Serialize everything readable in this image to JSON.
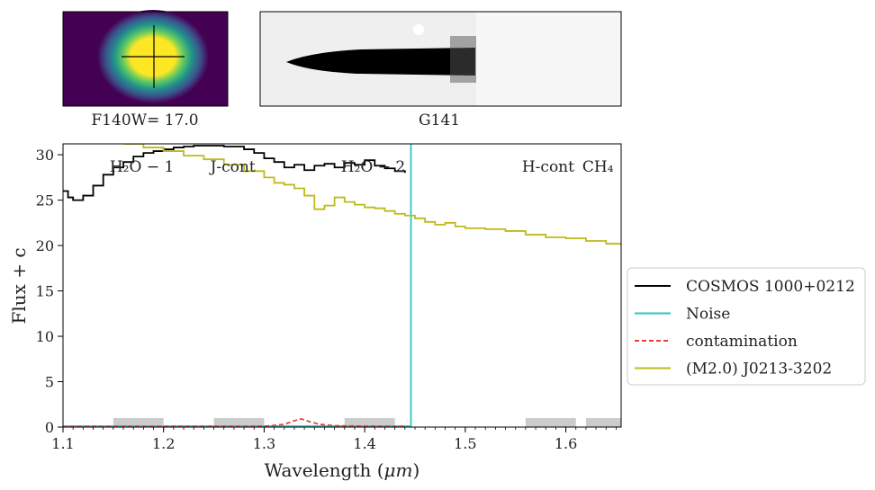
{
  "thumbnails": {
    "direct_caption": "F140W= 17.0",
    "grism_caption": "G141"
  },
  "chart_data": {
    "type": "line",
    "xlabel": "Wavelength ($\\mu m$)",
    "ylabel": "Flux + c",
    "xlim": [
      1.1,
      1.655
    ],
    "ylim": [
      0,
      31.2
    ],
    "xticks": [
      1.1,
      1.2,
      1.3,
      1.4,
      1.5,
      1.6
    ],
    "yticks": [
      0,
      5,
      10,
      15,
      20,
      25,
      30
    ],
    "legend_position": "outside-right",
    "band_labels": [
      {
        "text": "H₂O − 1",
        "x": 1.15
      },
      {
        "text": "J-cont",
        "x": 1.25
      },
      {
        "text": "H₂O − 2",
        "x": 1.38
      },
      {
        "text": "H-cont",
        "x": 1.56
      },
      {
        "text": "CH₄",
        "x": 1.62
      }
    ],
    "shaded_regions": [
      [
        1.15,
        1.2
      ],
      [
        1.25,
        1.3
      ],
      [
        1.38,
        1.43
      ],
      [
        1.56,
        1.61
      ],
      [
        1.62,
        1.655
      ]
    ],
    "series": [
      {
        "name": "COSMOS 1000+0212",
        "color": "#000000",
        "style": "step",
        "x": [
          1.1,
          1.105,
          1.11,
          1.12,
          1.13,
          1.14,
          1.15,
          1.16,
          1.17,
          1.18,
          1.19,
          1.2,
          1.21,
          1.22,
          1.23,
          1.24,
          1.25,
          1.26,
          1.27,
          1.28,
          1.29,
          1.3,
          1.31,
          1.32,
          1.33,
          1.34,
          1.35,
          1.36,
          1.37,
          1.38,
          1.39,
          1.4,
          1.41,
          1.42,
          1.43,
          1.44
        ],
        "y": [
          26.0,
          25.3,
          25.0,
          25.5,
          26.6,
          27.8,
          28.6,
          29.2,
          29.8,
          30.2,
          30.4,
          30.6,
          30.8,
          30.9,
          31.0,
          31.0,
          31.0,
          30.9,
          30.9,
          30.6,
          30.2,
          29.6,
          29.2,
          28.6,
          28.9,
          28.3,
          28.8,
          29.0,
          28.6,
          29.1,
          28.9,
          29.4,
          28.8,
          28.5,
          28.2,
          28.0
        ]
      },
      {
        "name": "Noise",
        "color": "#2ec4c4",
        "style": "step",
        "x": [
          1.1,
          1.445,
          1.446
        ],
        "y": [
          0.1,
          0.1,
          31.2
        ]
      },
      {
        "name": "contamination",
        "color": "#e8413c",
        "style": "dashed",
        "x": [
          1.1,
          1.3,
          1.32,
          1.33,
          1.337,
          1.345,
          1.355,
          1.37,
          1.4,
          1.44
        ],
        "y": [
          0.05,
          0.08,
          0.3,
          0.7,
          0.9,
          0.6,
          0.3,
          0.15,
          0.1,
          0.05
        ]
      },
      {
        "name": "(M2.0) J0213-3202",
        "color": "#bfba1a",
        "style": "step",
        "x": [
          1.16,
          1.18,
          1.2,
          1.22,
          1.24,
          1.26,
          1.28,
          1.3,
          1.31,
          1.32,
          1.33,
          1.34,
          1.35,
          1.36,
          1.37,
          1.38,
          1.39,
          1.4,
          1.41,
          1.42,
          1.43,
          1.44,
          1.45,
          1.46,
          1.47,
          1.48,
          1.49,
          1.5,
          1.52,
          1.54,
          1.56,
          1.58,
          1.6,
          1.62,
          1.64,
          1.655
        ],
        "y": [
          31.2,
          30.8,
          30.4,
          29.9,
          29.5,
          28.9,
          28.2,
          27.5,
          26.9,
          26.7,
          26.3,
          25.5,
          24.0,
          24.4,
          25.3,
          24.8,
          24.5,
          24.2,
          24.1,
          23.8,
          23.5,
          23.3,
          23.0,
          22.6,
          22.3,
          22.5,
          22.1,
          21.9,
          21.8,
          21.6,
          21.2,
          20.9,
          20.8,
          20.5,
          20.2,
          20.0
        ]
      }
    ]
  }
}
